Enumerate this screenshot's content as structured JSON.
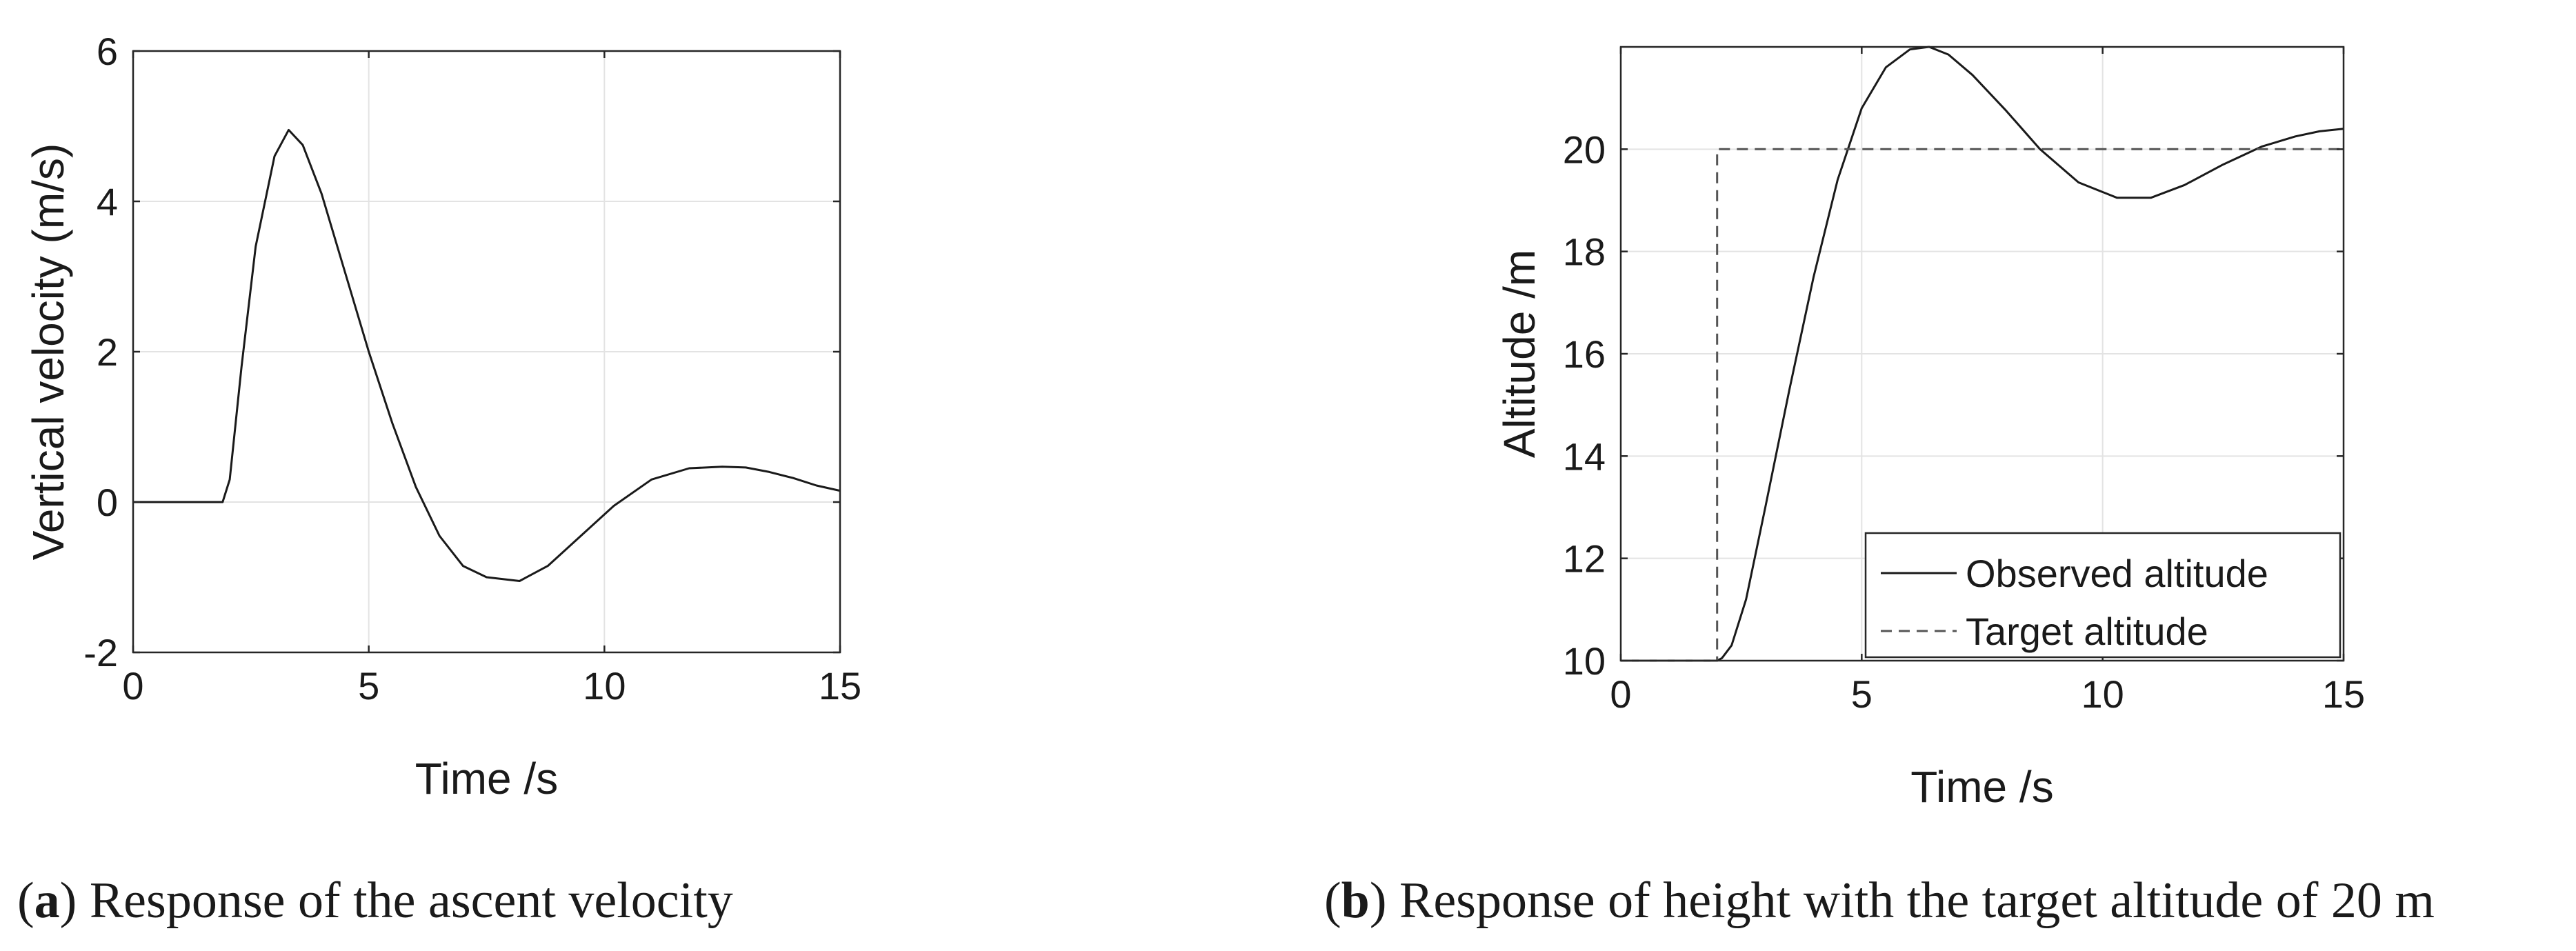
{
  "chart_data": [
    {
      "type": "line",
      "panel": "a",
      "caption_letter": "a",
      "caption_text": "Response of the ascent velocity",
      "xlabel": "Time /s",
      "ylabel": "Vertical velocity (m/s)",
      "xlim": [
        0,
        15
      ],
      "ylim": [
        -2,
        6
      ],
      "xticks": [
        0,
        5,
        10,
        15
      ],
      "yticks": [
        -2,
        0,
        2,
        4,
        6
      ],
      "grid": true,
      "series": [
        {
          "style": "solid",
          "color": "#1a1a1a",
          "x": [
            0,
            1,
            1.9,
            2.05,
            2.3,
            2.6,
            3.0,
            3.3,
            3.6,
            4.0,
            4.5,
            5.0,
            5.5,
            6.0,
            6.5,
            7.0,
            7.5,
            8.2,
            8.8,
            9.5,
            10.2,
            11.0,
            11.8,
            12.5,
            13.0,
            13.5,
            14.0,
            14.5,
            15.0
          ],
          "y": [
            0,
            0,
            0,
            0.3,
            1.8,
            3.4,
            4.6,
            4.95,
            4.75,
            4.1,
            3.05,
            2.0,
            1.05,
            0.2,
            -0.45,
            -0.85,
            -1.0,
            -1.05,
            -0.85,
            -0.45,
            -0.05,
            0.3,
            0.45,
            0.47,
            0.46,
            0.4,
            0.32,
            0.22,
            0.15
          ]
        }
      ]
    },
    {
      "type": "line",
      "panel": "b",
      "caption_letter": "b",
      "caption_text": "Response of height with the target altitude of 20 m",
      "xlabel": "Time /s",
      "ylabel": "Altitude /m",
      "xlim": [
        0,
        15
      ],
      "ylim": [
        10,
        22
      ],
      "xticks": [
        0,
        5,
        10,
        15
      ],
      "yticks": [
        10,
        12,
        14,
        16,
        18,
        20
      ],
      "grid": true,
      "legend_position": "bottom-right",
      "series": [
        {
          "name": "Observed altitude",
          "style": "solid",
          "color": "#1a1a1a",
          "x": [
            0,
            1,
            2.0,
            2.1,
            2.3,
            2.6,
            3.0,
            3.5,
            4.0,
            4.5,
            5.0,
            5.5,
            6.0,
            6.4,
            6.8,
            7.3,
            8.0,
            8.7,
            9.5,
            10.3,
            11.0,
            11.7,
            12.5,
            13.3,
            14.0,
            14.5,
            15.0
          ],
          "y": [
            10,
            10,
            10,
            10.05,
            10.3,
            11.2,
            13.0,
            15.3,
            17.5,
            19.4,
            20.8,
            21.6,
            21.95,
            22.0,
            21.85,
            21.45,
            20.75,
            20.0,
            19.35,
            19.05,
            19.05,
            19.3,
            19.7,
            20.05,
            20.25,
            20.35,
            20.4
          ]
        },
        {
          "name": "Target altitude",
          "style": "dashed",
          "color": "#555555",
          "x": [
            0,
            2.0,
            2.0,
            15.0
          ],
          "y": [
            10,
            10,
            20,
            20
          ]
        }
      ]
    }
  ]
}
